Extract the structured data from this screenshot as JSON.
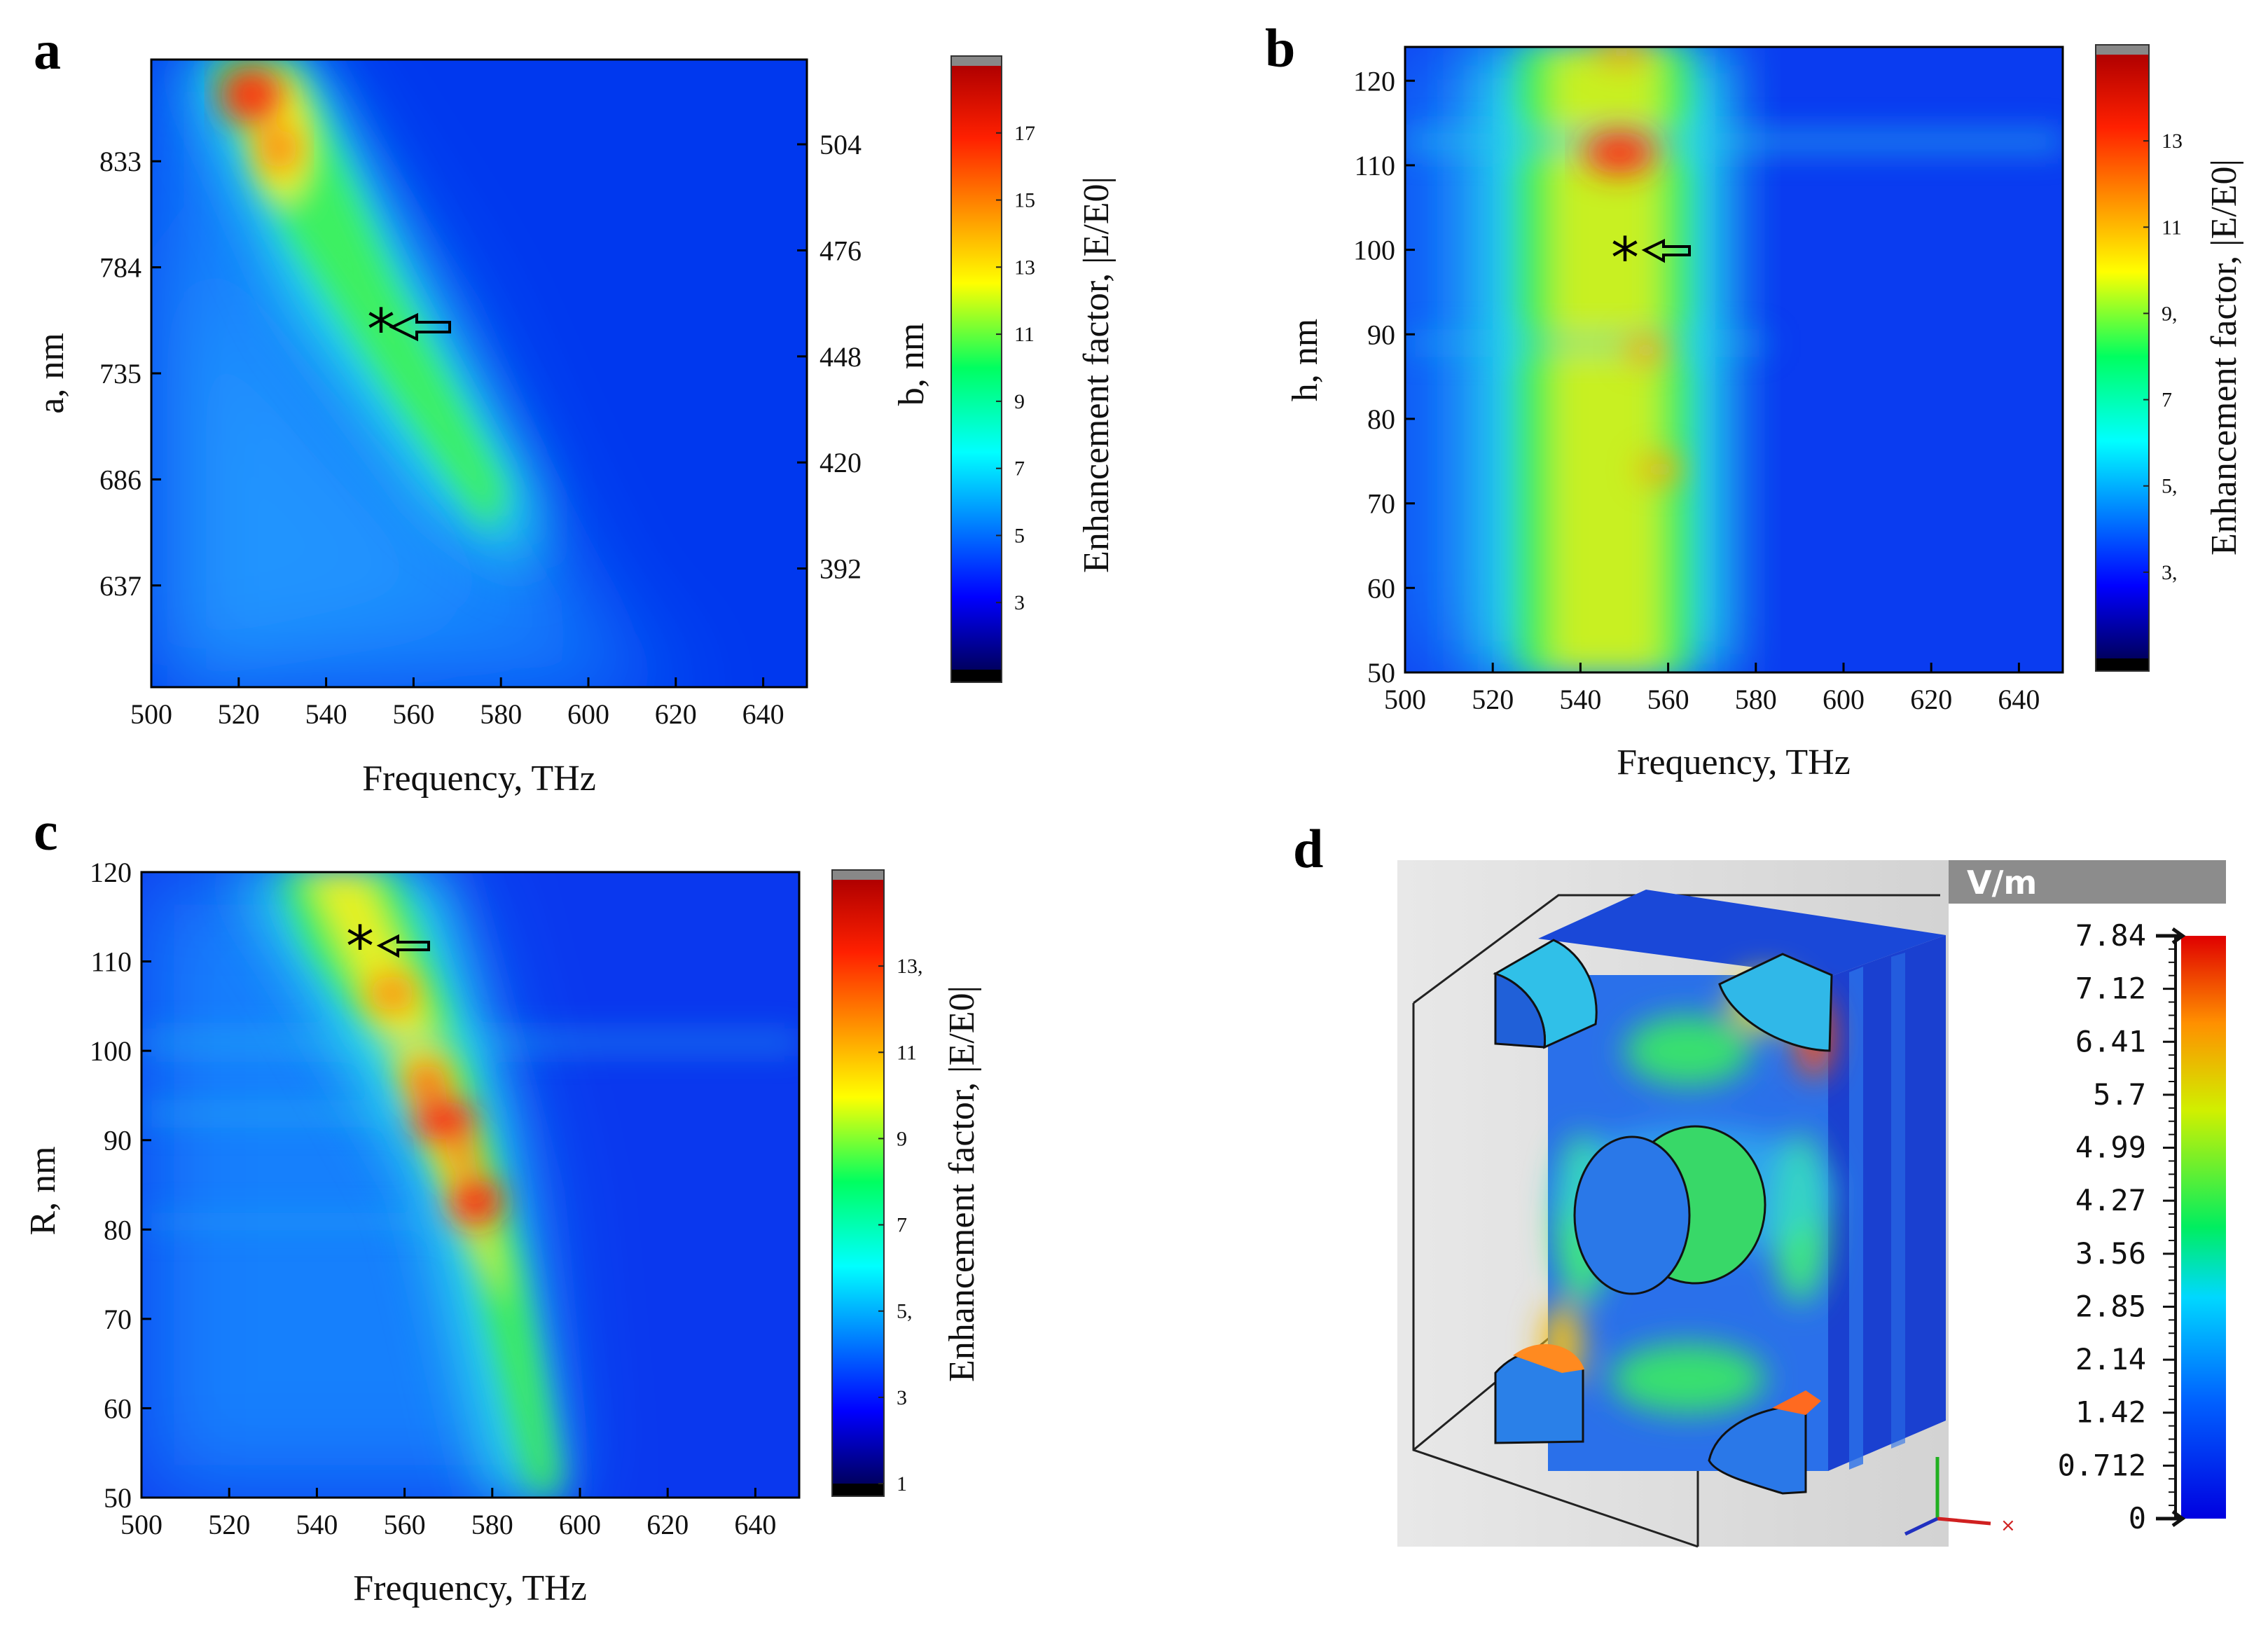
{
  "colors": {
    "accent": "#ff0000",
    "deep_blue": "#0010d8",
    "background": "#ffffff"
  },
  "chart_data": [
    {
      "panel": "a",
      "type": "heatmap",
      "title": "",
      "xlabel": "Frequency, THz",
      "ylabel": "a, nm",
      "y2label": "b, nm",
      "xlim": [
        500,
        650
      ],
      "ylim": [
        590,
        880
      ],
      "xticks": [
        "500",
        "520",
        "540",
        "560",
        "580",
        "600",
        "620",
        "640"
      ],
      "yticks": [
        "637",
        "686",
        "735",
        "784",
        "833"
      ],
      "y2ticks": [
        "392",
        "420",
        "448",
        "476",
        "504"
      ],
      "colorbar": {
        "label": "Enhancement factor, |E/E0|",
        "range": [
          1,
          19
        ],
        "ticks": [
          "3",
          "5",
          "7",
          "9",
          "11",
          "13",
          "15",
          "17"
        ]
      },
      "marker": {
        "symbol": "*",
        "x": 550,
        "y": 758
      },
      "hotspots": [
        {
          "x": 523,
          "y": 860,
          "value": 18
        },
        {
          "x": 529,
          "y": 828,
          "value": 15
        }
      ]
    },
    {
      "panel": "b",
      "type": "heatmap",
      "title": "",
      "xlabel": "Frequency, THz",
      "ylabel": "h, nm",
      "xlim": [
        500,
        650
      ],
      "ylim": [
        50,
        124
      ],
      "xticks": [
        "500",
        "520",
        "540",
        "560",
        "580",
        "600",
        "620",
        "640"
      ],
      "yticks": [
        "50",
        "60",
        "70",
        "80",
        "90",
        "100",
        "110",
        "120"
      ],
      "colorbar": {
        "label": "Enhancement factor, |E/E0|",
        "range": [
          1,
          15
        ],
        "ticks": [
          "3,",
          "5,",
          "7",
          "9,",
          "11",
          "13"
        ]
      },
      "marker": {
        "symbol": "*",
        "x": 550,
        "y": 100
      },
      "hotspots": [
        {
          "x": 550,
          "y": 111,
          "value": 14
        },
        {
          "x": 553,
          "y": 88,
          "value": 12
        },
        {
          "x": 556,
          "y": 74,
          "value": 12
        }
      ]
    },
    {
      "panel": "c",
      "type": "heatmap",
      "title": "",
      "xlabel": "Frequency, THz",
      "ylabel": "R, nm",
      "xlim": [
        500,
        650
      ],
      "ylim": [
        50,
        120
      ],
      "xticks": [
        "500",
        "520",
        "540",
        "560",
        "580",
        "600",
        "620",
        "640"
      ],
      "yticks": [
        "50",
        "60",
        "70",
        "80",
        "90",
        "100",
        "110",
        "120"
      ],
      "colorbar": {
        "label": "Enhancement factor, |E/E0|",
        "range": [
          1,
          15
        ],
        "ticks": [
          "1",
          "3",
          "5,",
          "7",
          "9",
          "11",
          "13,"
        ]
      },
      "marker": {
        "symbol": "*",
        "x": 551,
        "y": 112
      },
      "hotspots": [
        {
          "x": 557,
          "y": 106,
          "value": 13
        },
        {
          "x": 566,
          "y": 97,
          "value": 14
        },
        {
          "x": 570,
          "y": 92,
          "value": 15
        },
        {
          "x": 573,
          "y": 88,
          "value": 14
        },
        {
          "x": 576,
          "y": 84,
          "value": 15
        }
      ]
    },
    {
      "panel": "d",
      "type": "field-map",
      "colorbar": {
        "unit": "V/m",
        "ticks": [
          "7.84",
          "7.12",
          "6.41",
          "5.7",
          "4.99",
          "4.27",
          "3.56",
          "2.85",
          "2.14",
          "1.42",
          "0.712",
          "0"
        ]
      }
    }
  ]
}
